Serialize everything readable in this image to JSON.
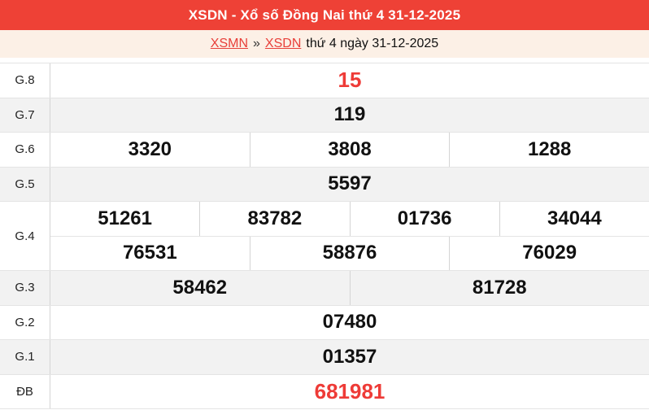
{
  "header": {
    "title": "XSDN - Xổ số Đồng Nai thứ 4 31-12-2025"
  },
  "breadcrumb": {
    "link_xsmn": "XSMN",
    "separator": "»",
    "link_xsdn": "XSDN",
    "suffix": "thứ 4 ngày 31-12-2025"
  },
  "colors": {
    "header_red": "#ee4136",
    "breadcrumb_cream": "#fcf0e6",
    "alt_row_gray": "#f2f2f2",
    "special_number_red": "#ee3b37",
    "link_red": "#e8403a",
    "border_gray": "#e4e4e4"
  },
  "table": {
    "rows": [
      {
        "label": "G.8",
        "cells": [
          "15"
        ]
      },
      {
        "label": "G.7",
        "cells": [
          "119"
        ]
      },
      {
        "label": "G.6",
        "cells": [
          "3320",
          "3808",
          "1288"
        ]
      },
      {
        "label": "G.5",
        "cells": [
          "5597"
        ]
      },
      {
        "label": "G.4",
        "cells_row1": [
          "51261",
          "83782",
          "01736",
          "34044"
        ],
        "cells_row2": [
          "76531",
          "58876",
          "76029"
        ]
      },
      {
        "label": "G.3",
        "cells": [
          "58462",
          "81728"
        ]
      },
      {
        "label": "G.2",
        "cells": [
          "07480"
        ]
      },
      {
        "label": "G.1",
        "cells": [
          "01357"
        ]
      },
      {
        "label": "ĐB",
        "cells": [
          "681981"
        ]
      }
    ]
  }
}
